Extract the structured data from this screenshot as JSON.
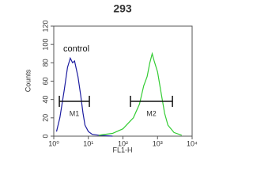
{
  "chart_data": {
    "type": "line",
    "title": "293",
    "annotation": "control",
    "xlabel": "FL1-H",
    "ylabel": "Counts",
    "xscale": "log",
    "xlim": [
      1,
      10000
    ],
    "xticks": [
      {
        "value": 1,
        "label": "10⁰"
      },
      {
        "value": 10,
        "label": "10¹"
      },
      {
        "value": 100,
        "label": "10²"
      },
      {
        "value": 1000,
        "label": "10³"
      },
      {
        "value": 10000,
        "label": "10⁴"
      }
    ],
    "ylim": [
      0,
      120
    ],
    "yticks": [
      0,
      20,
      40,
      60,
      80,
      100,
      120
    ],
    "series": [
      {
        "color": "#1c1ca0",
        "x": [
          1.2,
          1.5,
          2,
          2.5,
          3,
          3.5,
          4,
          5,
          6,
          7,
          8,
          10,
          13,
          20,
          50
        ],
        "values": [
          5,
          20,
          50,
          75,
          85,
          80,
          82,
          65,
          45,
          25,
          12,
          5,
          2,
          1,
          0
        ]
      },
      {
        "color": "#33cc33",
        "x": [
          20,
          50,
          100,
          200,
          300,
          400,
          500,
          600,
          700,
          800,
          1000,
          1300,
          1600,
          2000,
          3000,
          5000
        ],
        "values": [
          1,
          3,
          8,
          20,
          35,
          55,
          65,
          80,
          90,
          82,
          70,
          45,
          25,
          12,
          4,
          1
        ]
      }
    ],
    "markers": [
      {
        "label": "M1",
        "range": [
          1.45,
          10.7
        ],
        "level": 38
      },
      {
        "label": "M2",
        "range": [
          165,
          2700
        ],
        "level": 38
      }
    ]
  }
}
